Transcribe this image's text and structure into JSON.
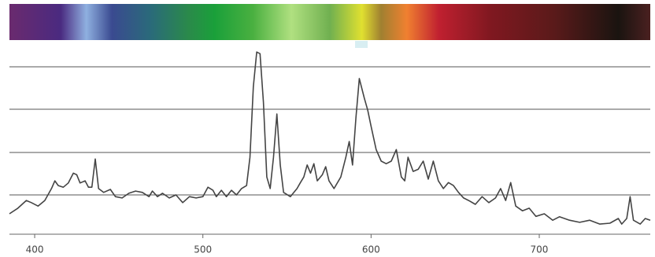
{
  "chart_data": {
    "type": "line",
    "x": [
      385,
      390,
      395,
      398,
      402,
      406,
      410,
      412,
      414,
      417,
      420,
      423,
      425,
      427,
      430,
      432,
      434,
      436,
      438,
      441,
      445,
      448,
      452,
      456,
      460,
      464,
      468,
      470,
      473,
      476,
      480,
      484,
      488,
      492,
      496,
      500,
      503,
      506,
      508,
      511,
      514,
      517,
      520,
      523,
      526,
      528,
      530,
      532,
      534,
      536,
      538,
      540,
      542,
      544,
      546,
      548,
      552,
      556,
      558,
      560,
      562,
      564,
      566,
      568,
      571,
      573,
      575,
      578,
      582,
      585,
      587,
      589,
      591,
      593,
      596,
      598,
      600,
      603,
      606,
      609,
      612,
      615,
      618,
      620,
      622,
      625,
      628,
      631,
      634,
      637,
      640,
      643,
      646,
      649,
      652,
      655,
      658,
      662,
      666,
      670,
      674,
      677,
      680,
      683,
      686,
      690,
      694,
      698,
      703,
      708,
      712,
      718,
      724,
      730,
      736,
      742,
      747,
      749,
      752,
      754,
      756,
      760,
      763,
      766
    ],
    "values": [
      0.56,
      0.69,
      0.87,
      0.82,
      0.74,
      0.87,
      1.15,
      1.33,
      1.22,
      1.18,
      1.28,
      1.51,
      1.47,
      1.28,
      1.33,
      1.18,
      1.18,
      1.84,
      1.15,
      1.06,
      1.13,
      0.96,
      0.93,
      1.04,
      1.09,
      1.06,
      0.96,
      1.09,
      0.96,
      1.04,
      0.93,
      1.0,
      0.82,
      0.96,
      0.93,
      0.96,
      1.18,
      1.11,
      0.96,
      1.11,
      0.96,
      1.11,
      1.0,
      1.15,
      1.22,
      1.88,
      3.53,
      4.34,
      4.3,
      3.17,
      1.42,
      1.15,
      1.88,
      2.89,
      1.7,
      1.06,
      0.96,
      1.15,
      1.29,
      1.42,
      1.7,
      1.51,
      1.73,
      1.33,
      1.47,
      1.66,
      1.33,
      1.15,
      1.42,
      1.88,
      2.25,
      1.7,
      2.8,
      3.72,
      3.26,
      2.98,
      2.61,
      2.06,
      1.79,
      1.73,
      1.79,
      2.06,
      1.42,
      1.33,
      1.88,
      1.55,
      1.6,
      1.79,
      1.37,
      1.79,
      1.33,
      1.15,
      1.29,
      1.22,
      1.06,
      0.93,
      0.87,
      0.78,
      0.96,
      0.82,
      0.93,
      1.15,
      0.87,
      1.29,
      0.74,
      0.63,
      0.69,
      0.5,
      0.56,
      0.41,
      0.49,
      0.41,
      0.36,
      0.41,
      0.32,
      0.34,
      0.45,
      0.32,
      0.45,
      0.96,
      0.41,
      0.32,
      0.45,
      0.41
    ],
    "color": "#444444",
    "xlim": [
      385,
      766
    ],
    "xticks": [
      400,
      500,
      600,
      700
    ],
    "ylim": [
      0,
      4.6
    ]
  }
}
